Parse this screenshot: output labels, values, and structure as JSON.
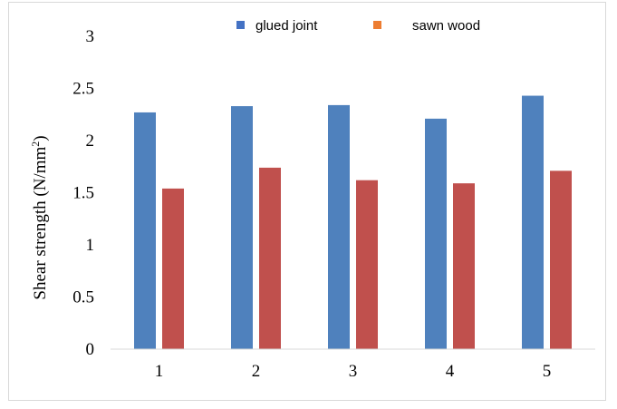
{
  "chart_data": {
    "type": "bar",
    "title": "",
    "xlabel": "",
    "ylabel": "Shear strength  (N/mm",
    "ylabel_sup": "2",
    "ylabel_close": ")",
    "categories": [
      "1",
      "2",
      "3",
      "4",
      "5"
    ],
    "series": [
      {
        "name": "glued joint",
        "values": [
          2.27,
          2.33,
          2.34,
          2.21,
          2.43
        ],
        "color": "#4f81bd",
        "legend_color": "#4472c4"
      },
      {
        "name": "sawn wood",
        "values": [
          1.54,
          1.74,
          1.62,
          1.59,
          1.71
        ],
        "color": "#c0504d",
        "legend_color": "#ed7d31"
      }
    ],
    "ylim": [
      0,
      3
    ],
    "yticks": [
      "0",
      "0.5",
      "1",
      "1.5",
      "2",
      "2.5",
      "3"
    ],
    "ytick_values": [
      0,
      0.5,
      1,
      1.5,
      2,
      2.5,
      3
    ],
    "grid": false,
    "legend_position": "top"
  }
}
